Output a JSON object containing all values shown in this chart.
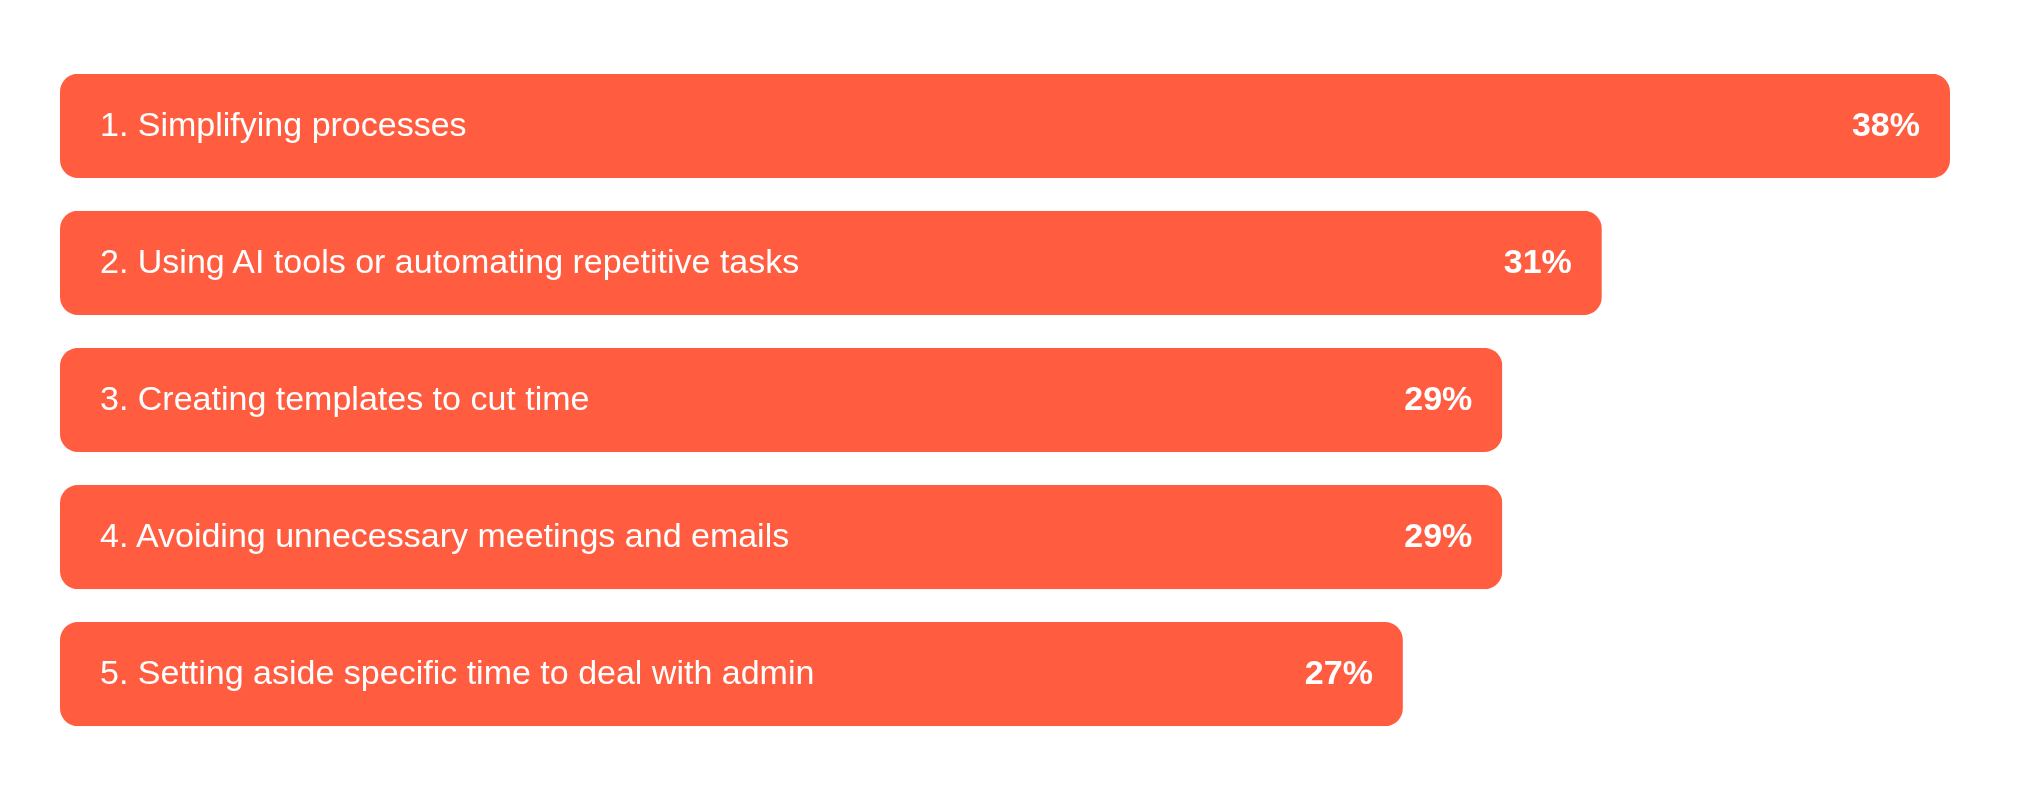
{
  "chart_data": {
    "type": "bar",
    "orientation": "horizontal",
    "categories": [
      "1. Simplifying processes",
      "2. Using AI tools or automating repetitive tasks",
      "3. Creating templates to cut time",
      "4. Avoiding unnecessary meetings and emails",
      "5. Setting aside specific time to deal with admin"
    ],
    "values": [
      38,
      31,
      29,
      29,
      27
    ],
    "value_labels": [
      "38%",
      "31%",
      "29%",
      "29%",
      "27%"
    ],
    "color": "#ff5c40"
  }
}
